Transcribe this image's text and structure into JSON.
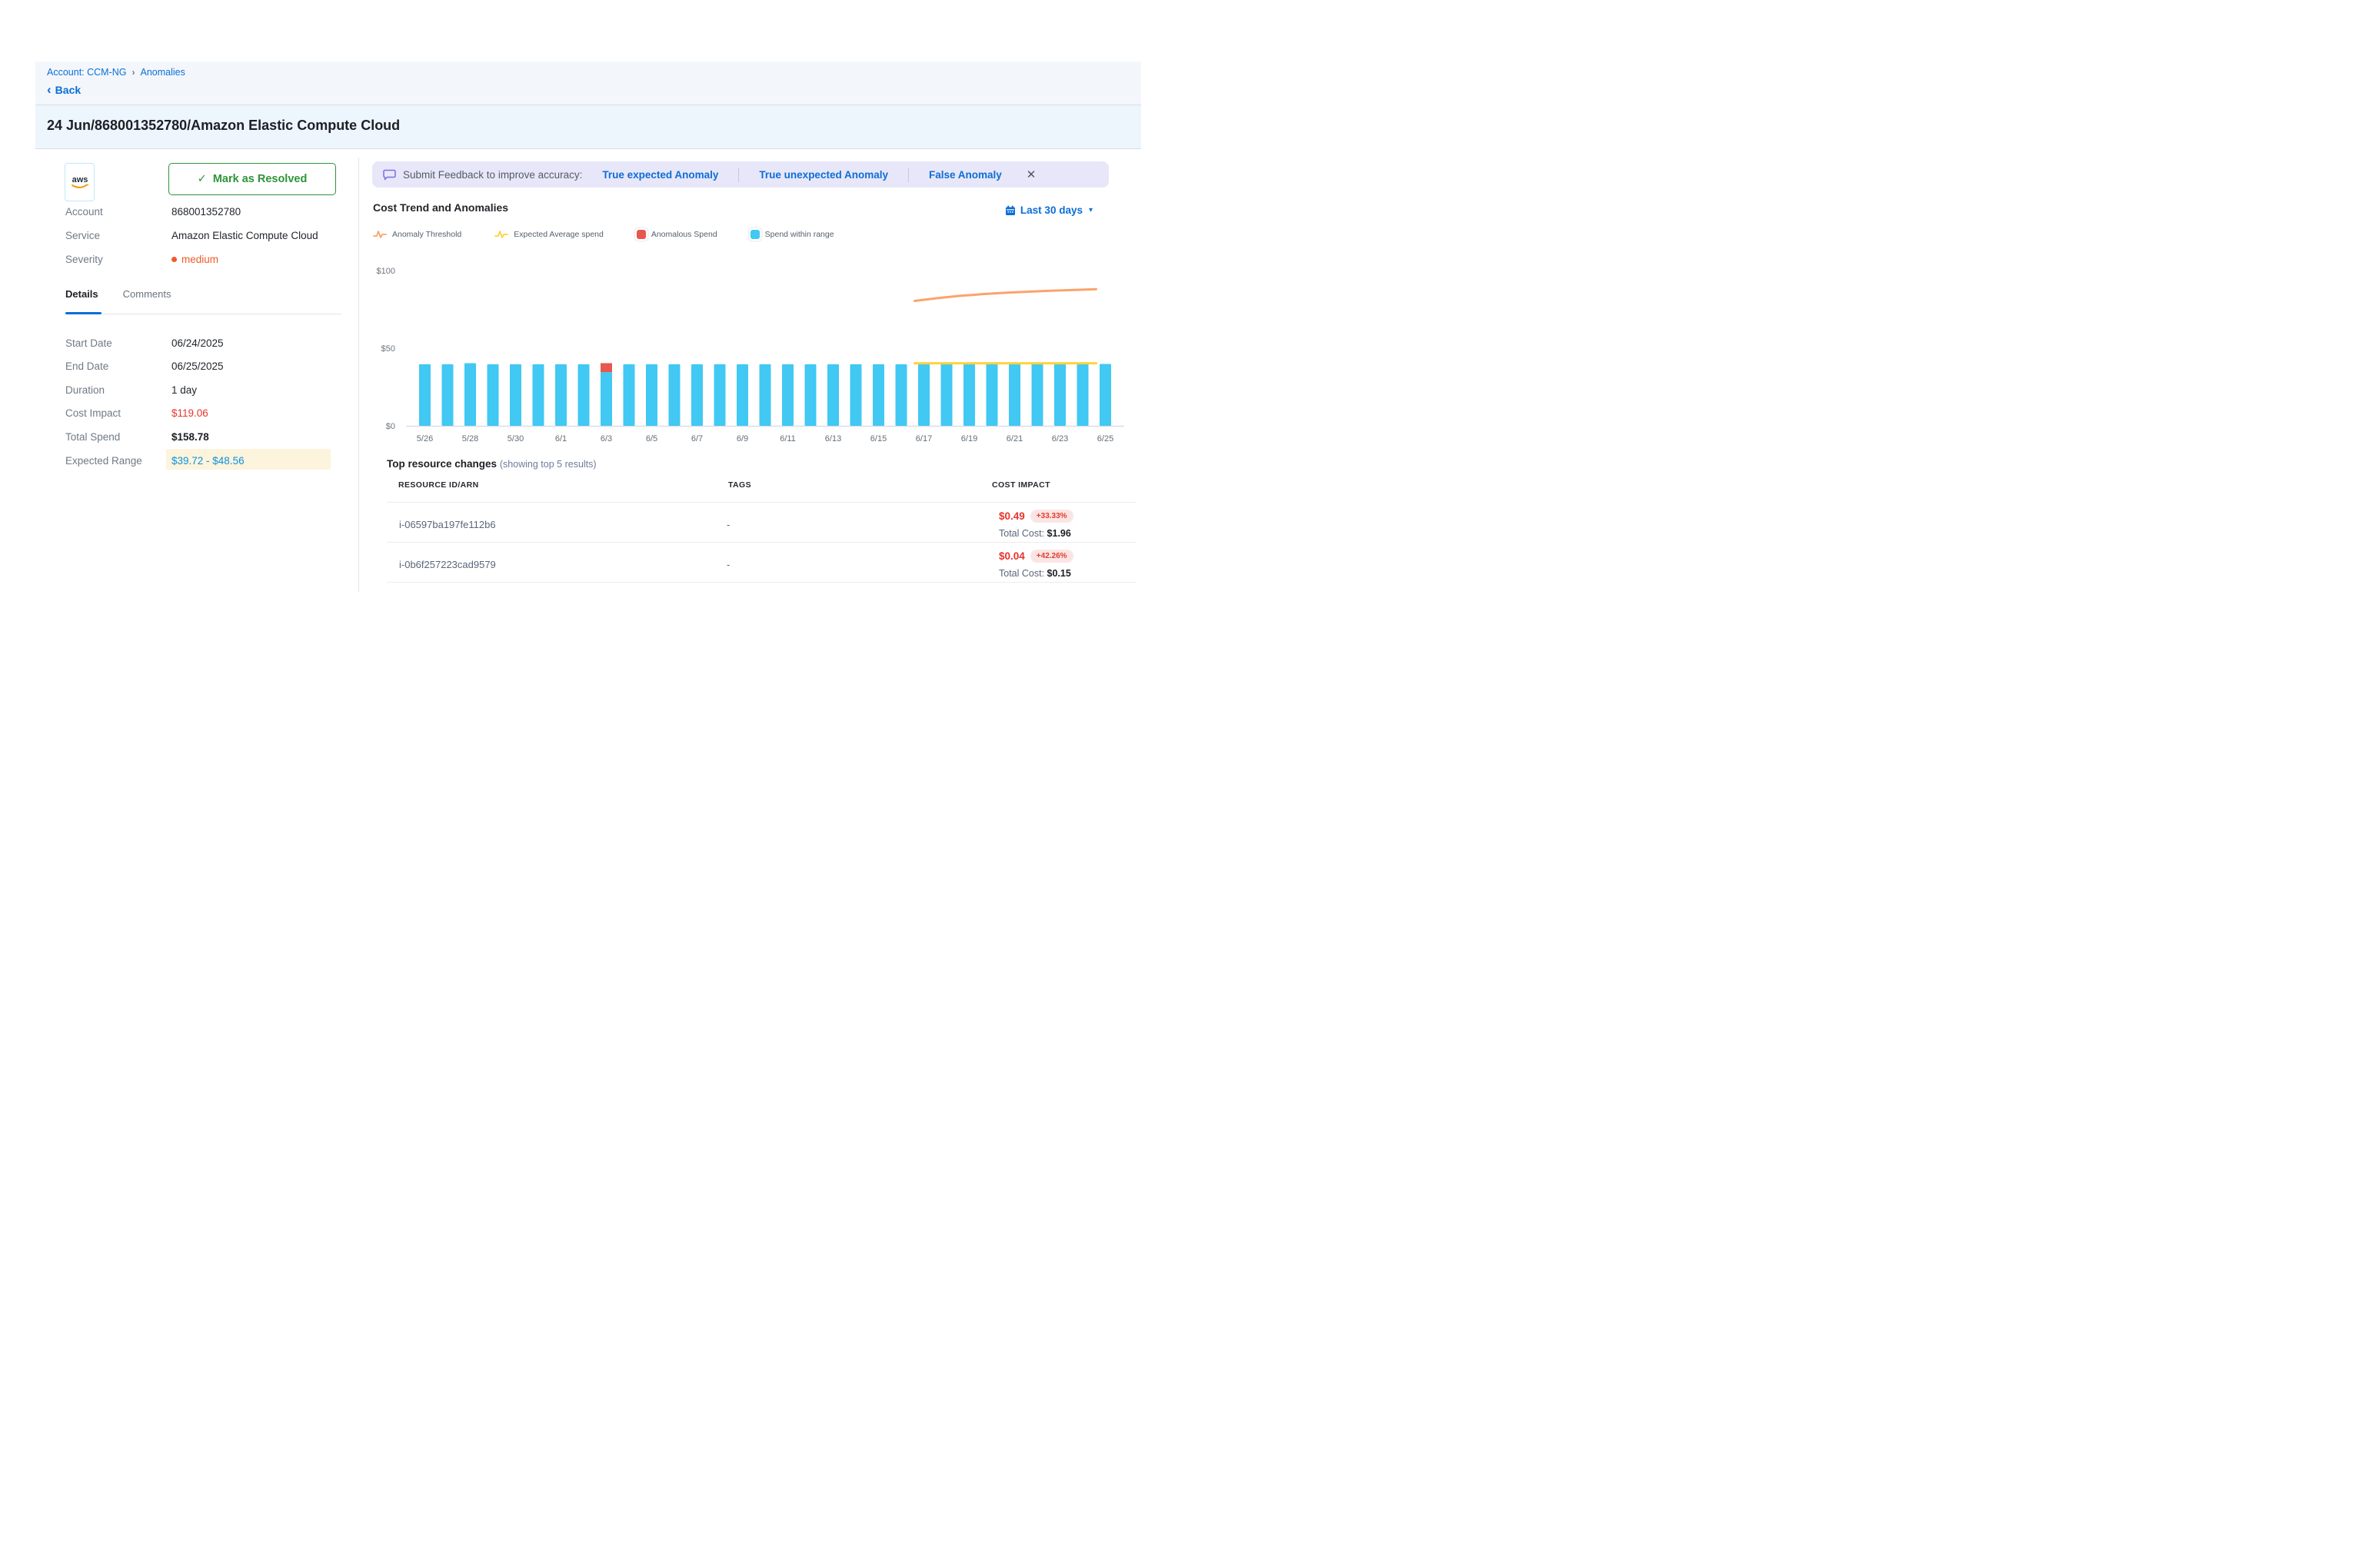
{
  "breadcrumb": {
    "account_crumb": "Account: CCM-NG",
    "separator": "›",
    "current_crumb": "Anomalies"
  },
  "back": {
    "chevron": "‹",
    "label": "Back"
  },
  "header": {
    "title": "24 Jun/868001352780/Amazon Elastic Compute Cloud"
  },
  "summary": {
    "provider_logo_text": "aws",
    "resolve_button": {
      "check": "✓",
      "label": "Mark as Resolved"
    },
    "fields": [
      {
        "label": "Account",
        "value": "868001352780",
        "style": "normal"
      },
      {
        "label": "Service",
        "value": "Amazon Elastic Compute Cloud",
        "style": "normal"
      },
      {
        "label": "Severity",
        "value": "medium",
        "style": "severity"
      }
    ]
  },
  "tabs": [
    {
      "label": "Details",
      "active": true
    },
    {
      "label": "Comments",
      "active": false
    }
  ],
  "details": [
    {
      "label": "Start Date",
      "value": "06/24/2025",
      "style": "normal"
    },
    {
      "label": "End Date",
      "value": "06/25/2025",
      "style": "normal"
    },
    {
      "label": "Duration",
      "value": "1 day",
      "style": "normal"
    },
    {
      "label": "Cost Impact",
      "value": "$119.06",
      "style": "red"
    },
    {
      "label": "Total Spend",
      "value": "$158.78",
      "style": "bold"
    },
    {
      "label": "Expected Range",
      "value": "$39.72 - $48.56",
      "style": "expected"
    }
  ],
  "feedback": {
    "prompt": "Submit Feedback to improve accuracy:",
    "options": [
      "True expected Anomaly",
      "True unexpected Anomaly",
      "False Anomaly"
    ],
    "close_icon": "✕"
  },
  "chart": {
    "title": "Cost Trend and Anomalies",
    "range_selector": {
      "label": "Last 30 days",
      "caret": "▾"
    },
    "legend": [
      {
        "label": "Anomaly Threshold",
        "type": "pulse",
        "color": "#fba36b"
      },
      {
        "label": "Expected Average spend",
        "type": "pulse",
        "color": "#ffd23d"
      },
      {
        "label": "Anomalous Spend",
        "type": "square",
        "color": "#e7574e"
      },
      {
        "label": "Spend within range",
        "type": "square",
        "color": "#41c8f3"
      }
    ]
  },
  "chart_data": {
    "type": "bar",
    "title": "Cost Trend and Anomalies",
    "ylim": [
      0,
      100
    ],
    "yticks": [
      {
        "label": "$0",
        "value": 0
      },
      {
        "label": "$50",
        "value": 50
      },
      {
        "label": "$100",
        "value": 100
      }
    ],
    "x_tick_every": 2,
    "grid": false,
    "categories": [
      "5/26",
      "5/27",
      "5/28",
      "5/29",
      "5/30",
      "5/31",
      "6/1",
      "6/2",
      "6/3",
      "6/4",
      "6/5",
      "6/6",
      "6/7",
      "6/8",
      "6/9",
      "6/10",
      "6/11",
      "6/12",
      "6/13",
      "6/14",
      "6/15",
      "6/16",
      "6/17",
      "6/18",
      "6/19",
      "6/20",
      "6/21",
      "6/22",
      "6/23",
      "6/24",
      "6/25"
    ],
    "bar_values": [
      39.7,
      39.7,
      40.4,
      39.7,
      39.7,
      39.7,
      39.7,
      39.7,
      34.6,
      39.7,
      39.7,
      39.7,
      39.7,
      39.7,
      39.7,
      39.7,
      39.7,
      39.7,
      39.7,
      39.7,
      39.7,
      39.7,
      39.9,
      39.9,
      39.9,
      39.9,
      39.9,
      39.9,
      39.9,
      39.9,
      39.9
    ],
    "anomaly": {
      "category": "6/3",
      "index": 8,
      "within_range_value": 34.6,
      "anomalous_value": 5.8
    },
    "series": [
      {
        "name": "Spend within range",
        "type": "bar",
        "color": "#41c8f3"
      },
      {
        "name": "Anomalous Spend",
        "type": "bar_overlay",
        "color": "#e7574e"
      },
      {
        "name": "Expected Average spend",
        "type": "line",
        "color": "#ffd23d",
        "start_category": "6/17",
        "end_category": "6/25",
        "values": [
          40.3,
          40.3,
          40.3,
          40.3,
          40.3,
          40.3,
          40.3,
          40.3,
          40.3
        ]
      },
      {
        "name": "Anomaly Threshold",
        "type": "line",
        "color": "#fba36b",
        "start_category": "6/17",
        "end_category": "6/25",
        "values": [
          80.5,
          82.3,
          83.8,
          84.9,
          85.8,
          86.5,
          87.1,
          87.6,
          88.1
        ]
      }
    ]
  },
  "resources": {
    "title": "Top resource changes",
    "subtitle": "(showing top 5 results)",
    "columns": [
      "RESOURCE ID/ARN",
      "TAGS",
      "COST IMPACT"
    ],
    "rows": [
      {
        "resource_id": "i-06597ba197fe112b6",
        "tags": "-",
        "cost_impact": "$0.49",
        "percent": "+33.33%",
        "total_cost_label": "Total Cost:",
        "total_cost": "$1.96"
      },
      {
        "resource_id": "i-0b6f257223cad9579",
        "tags": "-",
        "cost_impact": "$0.04",
        "percent": "+42.26%",
        "total_cost_label": "Total Cost:",
        "total_cost": "$0.15"
      }
    ]
  }
}
